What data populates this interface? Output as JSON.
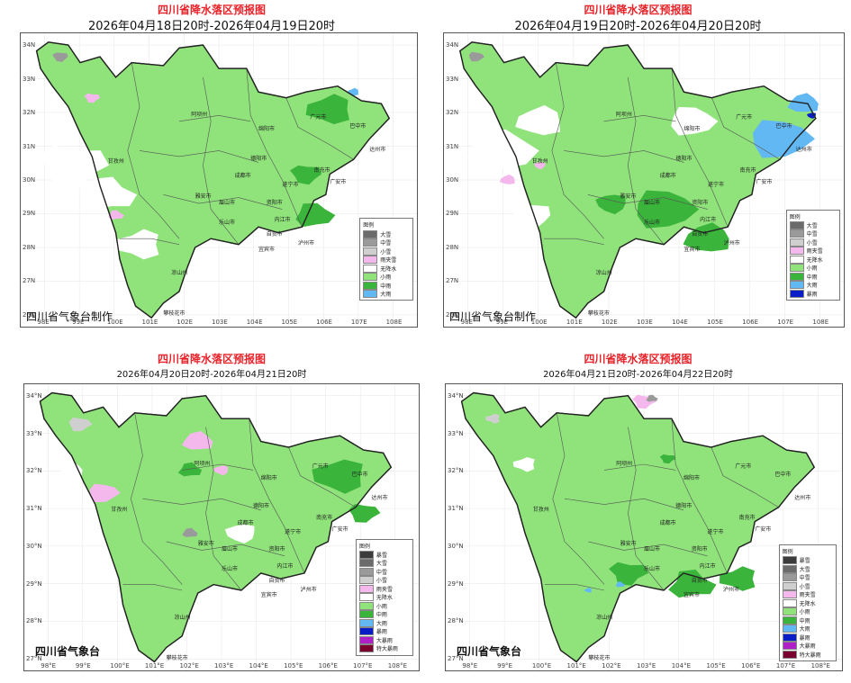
{
  "colors": {
    "light_rain": "#8fe37a",
    "moderate_rain": "#3bb43c",
    "heavy_rain": "#61b8f3",
    "rainstorm": "#0a1ec8",
    "sleet": "#f4b8ec",
    "no_precip": "#ffffff",
    "heavy_snow": "#6b6b6b",
    "moderate_snow": "#9a9a9a",
    "light_snow": "#cfcfcf",
    "title_red": "#e8232a"
  },
  "panels": [
    {
      "title": "四川省降水落区预报图",
      "date": "2026年04月18日20时-2026年04月19日20时",
      "credit": "四川省气象台制作",
      "lat_ticks": [
        "34N",
        "33N",
        "32N",
        "31N",
        "30N",
        "29N",
        "28N",
        "27N",
        "26N"
      ],
      "lon_ticks": [
        "98E",
        "99E",
        "100E",
        "101E",
        "102E",
        "103E",
        "104E",
        "105E",
        "106E",
        "107E",
        "108E"
      ],
      "legend": {
        "title": "图例",
        "items": [
          {
            "label": "大雪",
            "color": "#6b6b6b"
          },
          {
            "label": "中雪",
            "color": "#9a9a9a"
          },
          {
            "label": "小雪",
            "color": "#cfcfcf"
          },
          {
            "label": "雨夹雪",
            "color": "#f4b8ec"
          },
          {
            "label": "无降水",
            "color": "#ffffff"
          },
          {
            "label": "小雨",
            "color": "#8fe37a"
          },
          {
            "label": "中雨",
            "color": "#3bb43c"
          },
          {
            "label": "大雨",
            "color": "#61b8f3"
          }
        ]
      },
      "cities": [
        "阿坝州",
        "广元市",
        "巴中市",
        "绵阳市",
        "达州市",
        "甘孜州",
        "德阳市",
        "南充市",
        "成都市",
        "遂宁市",
        "广安市",
        "雅安市",
        "眉山市",
        "资阳市",
        "乐山市",
        "内江市",
        "自贡市",
        "宜宾市",
        "泸州市",
        "凉山州",
        "攀枝花市"
      ]
    },
    {
      "title": "四川省降水落区预报图",
      "date": "2026年04月19日20时-2026年04月20日20时",
      "credit": "四川省气象台制作",
      "lat_ticks": [
        "34N",
        "33N",
        "32N",
        "31N",
        "30N",
        "29N",
        "28N",
        "27N",
        "26N"
      ],
      "lon_ticks": [
        "98E",
        "99E",
        "100E",
        "101E",
        "102E",
        "103E",
        "104E",
        "105E",
        "106E",
        "107E",
        "108E"
      ],
      "legend": {
        "title": "图例",
        "items": [
          {
            "label": "大雪",
            "color": "#6b6b6b"
          },
          {
            "label": "中雪",
            "color": "#9a9a9a"
          },
          {
            "label": "小雪",
            "color": "#cfcfcf"
          },
          {
            "label": "雨夹雪",
            "color": "#f4b8ec"
          },
          {
            "label": "无降水",
            "color": "#ffffff"
          },
          {
            "label": "小雨",
            "color": "#8fe37a"
          },
          {
            "label": "中雨",
            "color": "#3bb43c"
          },
          {
            "label": "大雨",
            "color": "#61b8f3"
          },
          {
            "label": "暴雨",
            "color": "#0a1ec8"
          }
        ]
      },
      "cities": [
        "阿坝州",
        "广元市",
        "巴中市",
        "绵阳市",
        "达州市",
        "甘孜州",
        "德阳市",
        "南充市",
        "成都市",
        "遂宁市",
        "广安市",
        "雅安市",
        "眉山市",
        "资阳市",
        "乐山市",
        "内江市",
        "自贡市",
        "宜宾市",
        "泸州市",
        "凉山州",
        "攀枝花市"
      ]
    },
    {
      "title": "四川省降水落区预报图",
      "date": "2026年04月20日20时-2026年04月21日20时",
      "credit": "四川省气象台",
      "lat_ticks": [
        "34°N",
        "33°N",
        "32°N",
        "31°N",
        "30°N",
        "29°N",
        "28°N",
        "27°N"
      ],
      "lon_ticks": [
        "98°E",
        "99°E",
        "100°E",
        "101°E",
        "102°E",
        "103°E",
        "104°E",
        "105°E",
        "106°E",
        "107°E",
        "108°E"
      ],
      "legend": {
        "title": "图例",
        "items": [
          {
            "label": "暴雪",
            "color": "#3c3c3c"
          },
          {
            "label": "大雪",
            "color": "#6b6b6b"
          },
          {
            "label": "中雪",
            "color": "#9a9a9a"
          },
          {
            "label": "小雪",
            "color": "#cfcfcf"
          },
          {
            "label": "雨夹雪",
            "color": "#f4b8ec"
          },
          {
            "label": "无降水",
            "color": "#ffffff"
          },
          {
            "label": "小雨",
            "color": "#8fe37a"
          },
          {
            "label": "中雨",
            "color": "#3bb43c"
          },
          {
            "label": "大雨",
            "color": "#61b8f3"
          },
          {
            "label": "暴雨",
            "color": "#0a1ec8"
          },
          {
            "label": "大暴雨",
            "color": "#b020c8"
          },
          {
            "label": "特大暴雨",
            "color": "#7a0030"
          }
        ]
      },
      "cities": [
        "阿坝州",
        "广元市",
        "巴中市",
        "绵阳市",
        "达州市",
        "甘孜州",
        "德阳市",
        "南充市",
        "成都市",
        "遂宁市",
        "广安市",
        "雅安市",
        "眉山市",
        "资阳市",
        "乐山市",
        "内江市",
        "自贡市",
        "宜宾市",
        "泸州市",
        "凉山州",
        "攀枝花市"
      ]
    },
    {
      "title": "四川省降水落区预报图",
      "date": "2026年04月21日20时-2026年04月22日20时",
      "credit": "四川省气象台",
      "lat_ticks": [
        "34°N",
        "33°N",
        "32°N",
        "31°N",
        "30°N",
        "29°N",
        "28°N",
        "27°N"
      ],
      "lon_ticks": [
        "98°E",
        "99°E",
        "100°E",
        "101°E",
        "102°E",
        "103°E",
        "104°E",
        "105°E",
        "106°E",
        "107°E",
        "108°E"
      ],
      "legend": {
        "title": "图例",
        "items": [
          {
            "label": "暴雪",
            "color": "#3c3c3c"
          },
          {
            "label": "大雪",
            "color": "#6b6b6b"
          },
          {
            "label": "中雪",
            "color": "#9a9a9a"
          },
          {
            "label": "小雪",
            "color": "#cfcfcf"
          },
          {
            "label": "雨夹雪",
            "color": "#f4b8ec"
          },
          {
            "label": "无降水",
            "color": "#ffffff"
          },
          {
            "label": "小雨",
            "color": "#8fe37a"
          },
          {
            "label": "中雨",
            "color": "#3bb43c"
          },
          {
            "label": "大雨",
            "color": "#61b8f3"
          },
          {
            "label": "暴雨",
            "color": "#0a1ec8"
          },
          {
            "label": "大暴雨",
            "color": "#b020c8"
          },
          {
            "label": "特大暴雨",
            "color": "#7a0030"
          }
        ]
      },
      "cities": [
        "阿坝州",
        "广元市",
        "巴中市",
        "绵阳市",
        "达州市",
        "甘孜州",
        "德阳市",
        "南充市",
        "成都市",
        "遂宁市",
        "广安市",
        "雅安市",
        "眉山市",
        "资阳市",
        "乐山市",
        "内江市",
        "自贡市",
        "宜宾市",
        "泸州市",
        "凉山州",
        "攀枝花市"
      ]
    }
  ]
}
